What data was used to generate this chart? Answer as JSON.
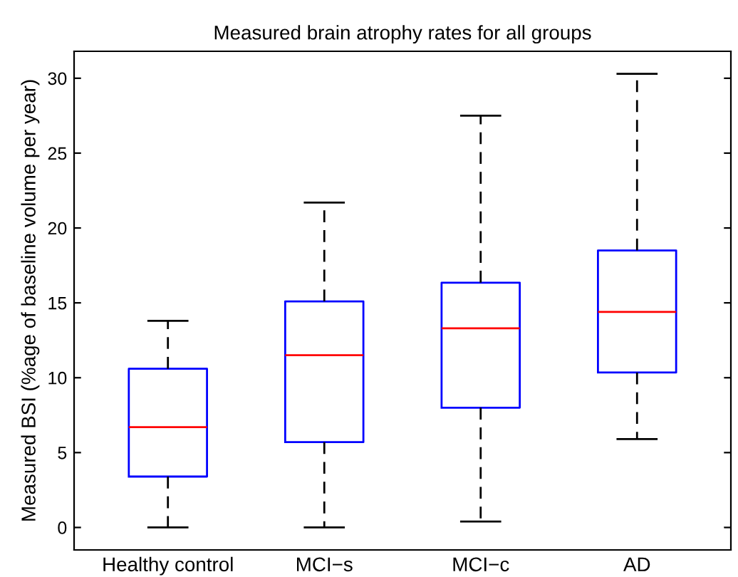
{
  "chart_data": {
    "type": "box",
    "title": "Measured brain atrophy rates for all groups",
    "ylabel": "Measured BSI (%age of baseline volume per year)",
    "categories": [
      "Healthy control",
      "MCI−s",
      "MCI−c",
      "AD"
    ],
    "boxes": [
      {
        "low": 0,
        "q1": 3.4,
        "median": 6.7,
        "q3": 10.6,
        "high": 13.8
      },
      {
        "low": 0,
        "q1": 5.7,
        "median": 11.5,
        "q3": 15.1,
        "high": 21.7
      },
      {
        "low": 0.4,
        "q1": 8.0,
        "median": 13.3,
        "q3": 16.35,
        "high": 27.5
      },
      {
        "low": 5.9,
        "q1": 10.35,
        "median": 14.4,
        "q3": 18.5,
        "high": 30.3
      }
    ],
    "color": "#0000ff",
    "ylim": [
      -1.5,
      31.8
    ],
    "yticks": [
      0,
      5,
      10,
      15,
      20,
      25,
      30
    ],
    "grid": false
  }
}
